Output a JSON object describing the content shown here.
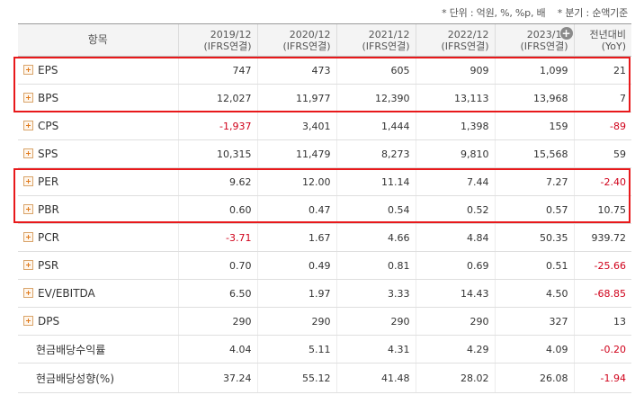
{
  "unit_note": {
    "unit": "* 단위 : 억원, %, %p, 배",
    "basis": "* 분기 : 순액기준"
  },
  "header": {
    "item_label": "항목",
    "columns": [
      {
        "year": "2019/12",
        "basis": "(IFRS연결)"
      },
      {
        "year": "2020/12",
        "basis": "(IFRS연결)"
      },
      {
        "year": "2021/12",
        "basis": "(IFRS연결)"
      },
      {
        "year": "2022/12",
        "basis": "(IFRS연결)"
      },
      {
        "year": "2023/12",
        "basis": "(IFRS연결)"
      }
    ],
    "yoy_label": "전년대비",
    "yoy_sub": "(YoY)",
    "more_columns_symbol": "+"
  },
  "rows": [
    {
      "label": "EPS",
      "values": [
        "747",
        "473",
        "605",
        "909",
        "1,099"
      ],
      "yoy": "21",
      "expandable": true
    },
    {
      "label": "BPS",
      "values": [
        "12,027",
        "11,977",
        "12,390",
        "13,113",
        "13,968"
      ],
      "yoy": "7",
      "expandable": true
    },
    {
      "label": "CPS",
      "values": [
        "-1,937",
        "3,401",
        "1,444",
        "1,398",
        "159"
      ],
      "yoy": "-89",
      "expandable": true
    },
    {
      "label": "SPS",
      "values": [
        "10,315",
        "11,479",
        "8,273",
        "9,810",
        "15,568"
      ],
      "yoy": "59",
      "expandable": true
    },
    {
      "label": "PER",
      "values": [
        "9.62",
        "12.00",
        "11.14",
        "7.44",
        "7.27"
      ],
      "yoy": "-2.40",
      "expandable": true
    },
    {
      "label": "PBR",
      "values": [
        "0.60",
        "0.47",
        "0.54",
        "0.52",
        "0.57"
      ],
      "yoy": "10.75",
      "expandable": true
    },
    {
      "label": "PCR",
      "values": [
        "-3.71",
        "1.67",
        "4.66",
        "4.84",
        "50.35"
      ],
      "yoy": "939.72",
      "expandable": true
    },
    {
      "label": "PSR",
      "values": [
        "0.70",
        "0.49",
        "0.81",
        "0.69",
        "0.51"
      ],
      "yoy": "-25.66",
      "expandable": true
    },
    {
      "label": "EV/EBITDA",
      "values": [
        "6.50",
        "1.97",
        "3.33",
        "14.43",
        "4.50"
      ],
      "yoy": "-68.85",
      "expandable": true
    },
    {
      "label": "DPS",
      "values": [
        "290",
        "290",
        "290",
        "290",
        "327"
      ],
      "yoy": "13",
      "expandable": true
    },
    {
      "label": "현금배당수익률",
      "values": [
        "4.04",
        "5.11",
        "4.31",
        "4.29",
        "4.09"
      ],
      "yoy": "-0.20",
      "expandable": false
    },
    {
      "label": "현금배당성향(%)",
      "values": [
        "37.24",
        "55.12",
        "41.48",
        "28.02",
        "26.08"
      ],
      "yoy": "-1.94",
      "expandable": false
    }
  ],
  "colors": {
    "negative": "#d0021b",
    "highlight_box": "#e8191b",
    "expand_icon": "#e07a1c"
  }
}
